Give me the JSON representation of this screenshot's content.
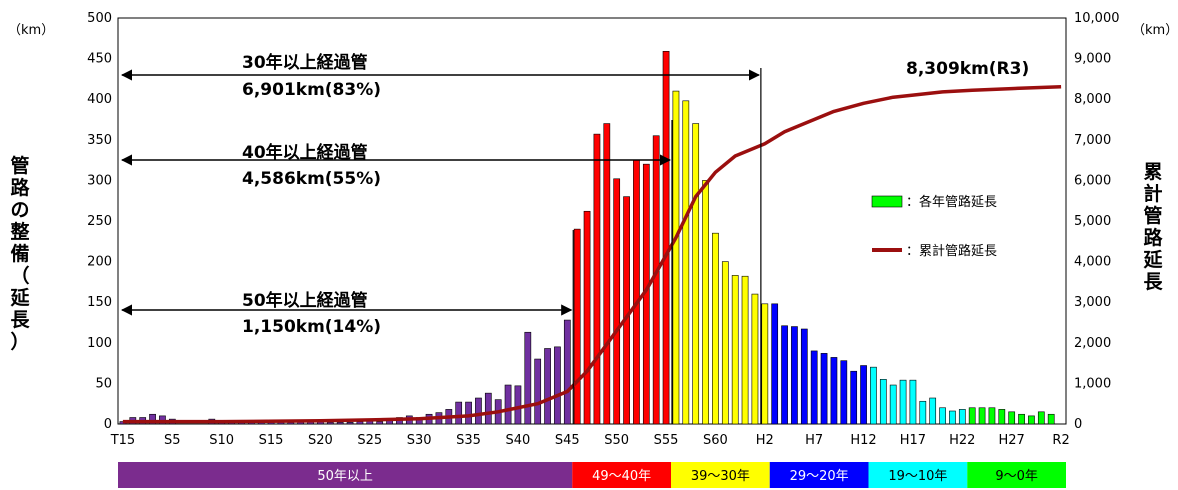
{
  "chart_data": {
    "type": "bar+line",
    "left_unit": "（km）",
    "right_unit": "（km）",
    "ylabel_left": "管路の整備（延長）",
    "ylabel_right": "累計管路延長",
    "ylim_left": [
      0,
      500
    ],
    "ylim_right": [
      0,
      10000
    ],
    "left_ticks": [
      "0",
      "50",
      "100",
      "150",
      "200",
      "250",
      "300",
      "350",
      "400",
      "450",
      "500"
    ],
    "right_ticks": [
      "0",
      "1,000",
      "2,000",
      "3,000",
      "4,000",
      "5,000",
      "6,000",
      "7,000",
      "8,000",
      "9,000",
      "10,000"
    ],
    "x_tick_labels": [
      {
        "label": "T15",
        "index": 0
      },
      {
        "label": "S5",
        "index": 5
      },
      {
        "label": "S10",
        "index": 10
      },
      {
        "label": "S15",
        "index": 15
      },
      {
        "label": "S20",
        "index": 20
      },
      {
        "label": "S25",
        "index": 25
      },
      {
        "label": "S30",
        "index": 30
      },
      {
        "label": "S35",
        "index": 35
      },
      {
        "label": "S40",
        "index": 40
      },
      {
        "label": "S45",
        "index": 45
      },
      {
        "label": "S50",
        "index": 50
      },
      {
        "label": "S55",
        "index": 55
      },
      {
        "label": "S60",
        "index": 60
      },
      {
        "label": "H2",
        "index": 65
      },
      {
        "label": "H7",
        "index": 70
      },
      {
        "label": "H12",
        "index": 75
      },
      {
        "label": "H17",
        "index": 80
      },
      {
        "label": "H22",
        "index": 85
      },
      {
        "label": "H27",
        "index": 90
      },
      {
        "label": "R2",
        "index": 95
      }
    ],
    "bars": [
      3,
      8,
      8,
      12,
      10,
      6,
      0,
      0,
      0,
      6,
      2,
      2,
      2,
      2,
      2,
      3,
      3,
      2,
      3,
      3,
      3,
      2,
      2,
      2,
      3,
      5,
      3,
      6,
      8,
      10,
      8,
      12,
      14,
      18,
      27,
      27,
      32,
      38,
      30,
      48,
      47,
      113,
      80,
      93,
      95,
      128,
      240,
      262,
      357,
      370,
      302,
      280,
      325,
      320,
      355,
      459,
      410,
      398,
      370,
      300,
      235,
      200,
      183,
      182,
      160,
      148,
      148,
      121,
      120,
      117,
      90,
      87,
      82,
      78,
      65,
      72,
      70,
      55,
      48,
      54,
      54,
      28,
      32,
      20,
      16,
      18,
      20,
      20,
      20,
      18,
      15,
      12,
      10,
      15,
      12
    ],
    "bar_series_name": "：各年管路延長",
    "line_series_name": "：累計管路延長",
    "cumulative": [
      [
        0,
        60
      ],
      [
        10,
        60
      ],
      [
        20,
        80
      ],
      [
        25,
        100
      ],
      [
        30,
        130
      ],
      [
        35,
        200
      ],
      [
        38,
        300
      ],
      [
        42,
        500
      ],
      [
        45,
        800
      ],
      [
        47,
        1300
      ],
      [
        50,
        2300
      ],
      [
        53,
        3300
      ],
      [
        56,
        4586
      ],
      [
        58,
        5600
      ],
      [
        60,
        6200
      ],
      [
        62,
        6600
      ],
      [
        65,
        6901
      ],
      [
        67,
        7200
      ],
      [
        70,
        7500
      ],
      [
        72,
        7700
      ],
      [
        75,
        7900
      ],
      [
        78,
        8050
      ],
      [
        80,
        8100
      ],
      [
        83,
        8180
      ],
      [
        86,
        8220
      ],
      [
        90,
        8260
      ],
      [
        95,
        8309
      ]
    ],
    "annotations": [
      {
        "title": "30年以上経過管",
        "value": "6,901km(83%)",
        "end_index": 65
      },
      {
        "title": "40年以上経過管",
        "value": "4,586km(55%)",
        "end_index": 56
      },
      {
        "title": "50年以上経過管",
        "value": "1,150km(14%)",
        "end_index": 46
      }
    ],
    "final_label": "8,309km(R3)",
    "age_bands": [
      {
        "label": "50年以上",
        "start": 0,
        "end": 46,
        "color": "#7b2c8e",
        "text_color": "#ffffff"
      },
      {
        "label": "49〜40年",
        "start": 46,
        "end": 56,
        "color": "#ff0000",
        "text_color": "#ffffff"
      },
      {
        "label": "39〜30年",
        "start": 56,
        "end": 66,
        "color": "#ffff00",
        "text_color": "#000000"
      },
      {
        "label": "29〜20年",
        "start": 66,
        "end": 76,
        "color": "#0000ff",
        "text_color": "#ffffff"
      },
      {
        "label": "19〜10年",
        "start": 76,
        "end": 86,
        "color": "#00ffff",
        "text_color": "#000000"
      },
      {
        "label": "9〜0年",
        "start": 86,
        "end": 96,
        "color": "#00ff00",
        "text_color": "#000000"
      }
    ],
    "colors": {
      "bar_50plus": "#7030a0",
      "bar_40s": "#ff0000",
      "bar_30s": "#ffff00",
      "bar_20s": "#0000ff",
      "bar_10s": "#00ffff",
      "bar_0s": "#00ff00",
      "line": "#9b0f0f"
    }
  }
}
